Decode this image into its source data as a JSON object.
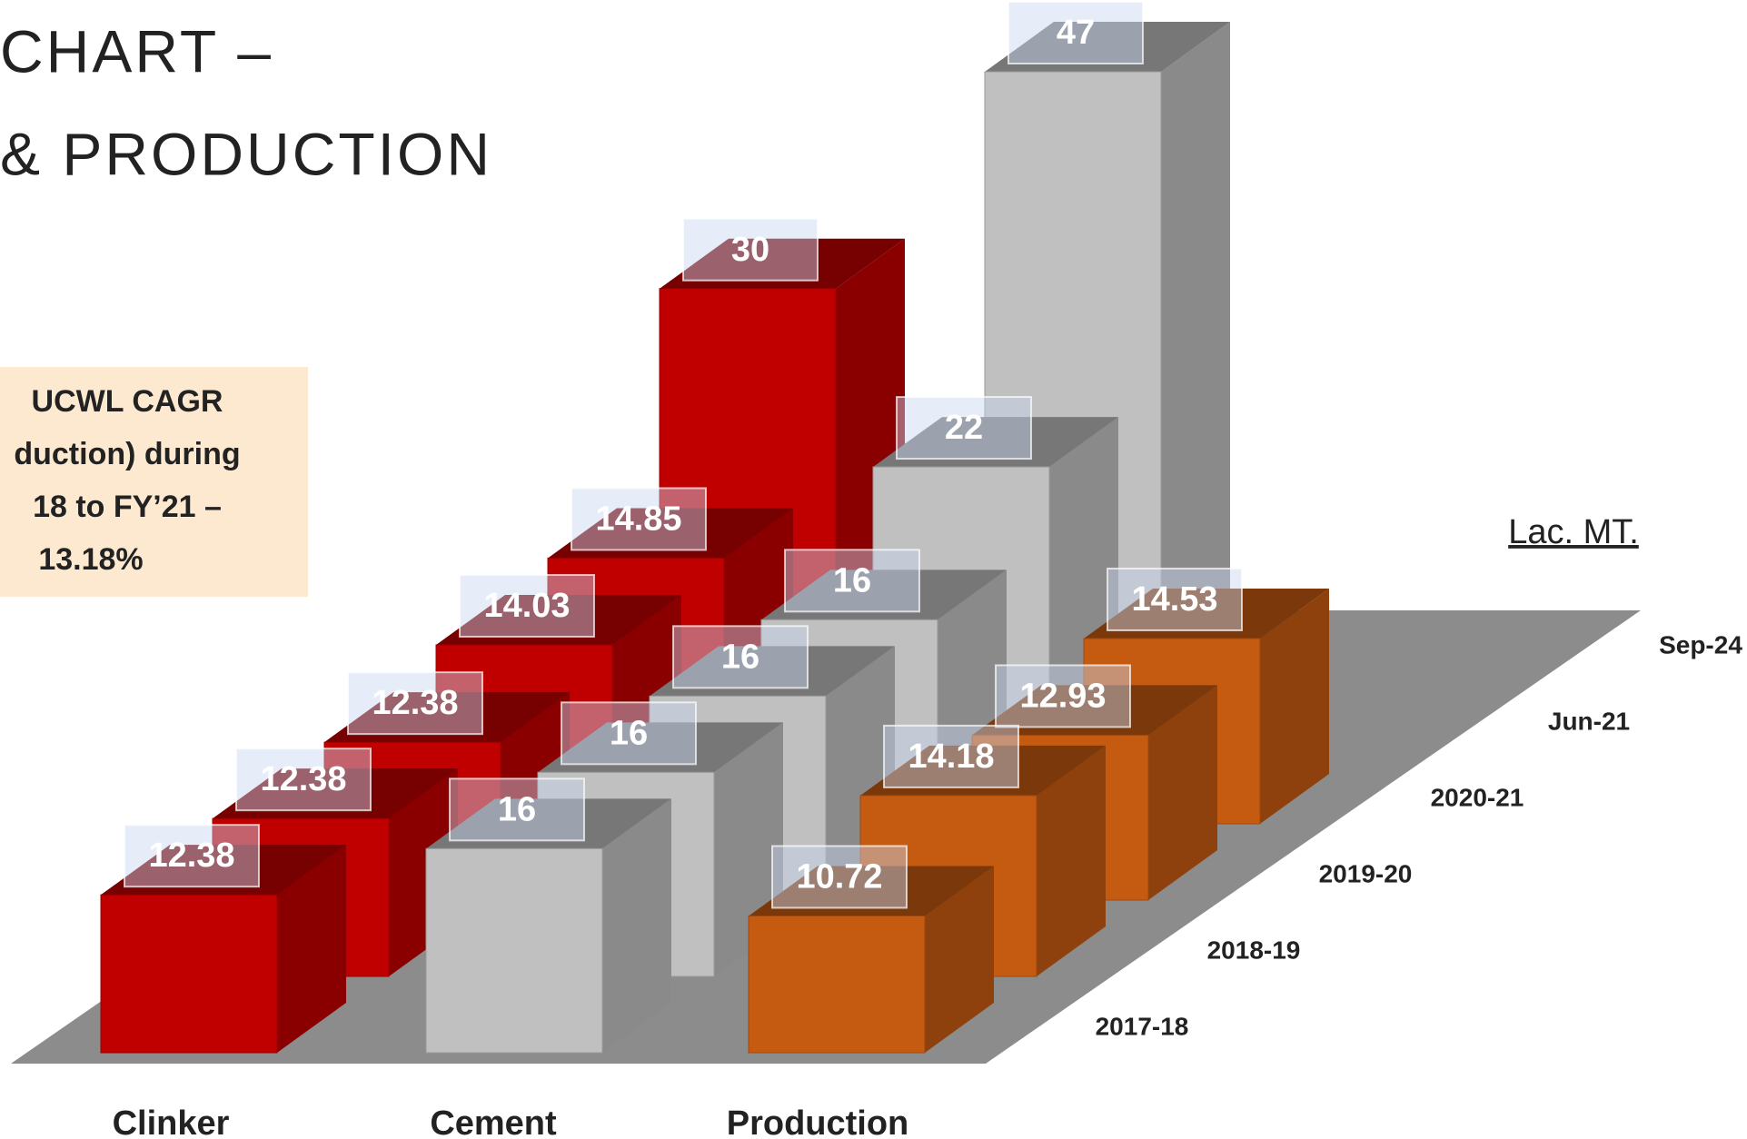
{
  "chart_data": {
    "type": "bar3d",
    "title_lines": [
      "CHART –",
      "& PRODUCTION"
    ],
    "annotation_lines": [
      "UCWL CAGR",
      "duction) during",
      "18 to FY’21  –",
      "13.18%"
    ],
    "unit_label": "Lac. MT.",
    "categories": [
      "2017-18",
      "2018-19",
      "2019-20",
      "2020-21",
      "Jun-21",
      "Sep-24"
    ],
    "series": [
      {
        "name": "Clinker",
        "color": "#c00000",
        "values": [
          12.38,
          12.38,
          12.38,
          14.03,
          14.85,
          30
        ]
      },
      {
        "name": "Cement",
        "color": "#c0c0c0",
        "values": [
          16,
          16,
          16,
          16,
          22,
          47
        ]
      },
      {
        "name": "Production",
        "color": "#c55a11",
        "values": [
          10.72,
          14.18,
          12.93,
          14.53,
          null,
          null
        ]
      }
    ]
  }
}
